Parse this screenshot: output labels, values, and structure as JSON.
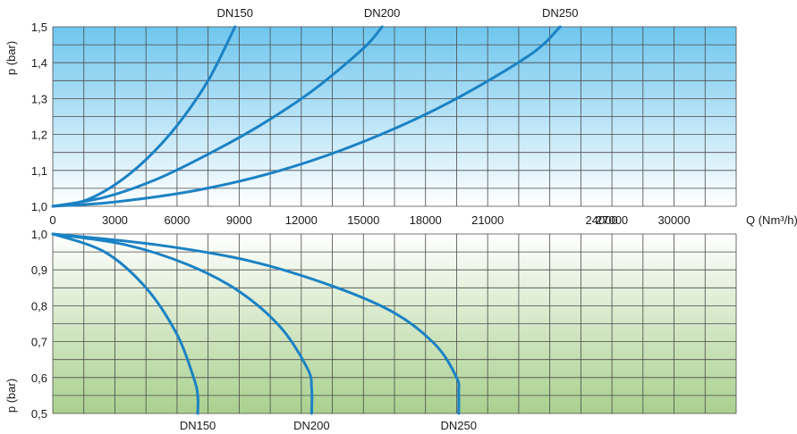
{
  "chart_data": [
    {
      "type": "line",
      "panel": "upper",
      "xlabel": "Q (Nm³/h)",
      "ylabel": "p (bar)",
      "xlim": [
        0,
        33000
      ],
      "ylim": [
        1.0,
        1.5
      ],
      "x_ticks": [
        "0",
        "3000",
        "6000",
        "9000",
        "12000",
        "15000",
        "18000",
        "21000",
        "27000",
        "30000"
      ],
      "x_tick_values": [
        0,
        3000,
        6000,
        9000,
        12000,
        15000,
        18000,
        21000,
        27000,
        30000
      ],
      "x_tick_24k": "24000",
      "y_ticks": [
        "1,0",
        "1,1",
        "1,2",
        "1,3",
        "1,4",
        "1,5"
      ],
      "y_tick_values": [
        1.0,
        1.1,
        1.2,
        1.3,
        1.4,
        1.5
      ],
      "grid": true,
      "background": "vertical gradient, light blue at top to white at bottom",
      "series": [
        {
          "name": "DN150",
          "x": [
            0,
            1500,
            3000,
            4500,
            6000,
            7500,
            8800
          ],
          "y": [
            1.0,
            1.015,
            1.06,
            1.13,
            1.225,
            1.35,
            1.5
          ]
        },
        {
          "name": "DN200",
          "x": [
            0,
            2500,
            5000,
            7500,
            10000,
            12500,
            15000,
            15900
          ],
          "y": [
            1.0,
            1.025,
            1.075,
            1.145,
            1.225,
            1.32,
            1.44,
            1.5
          ]
        },
        {
          "name": "DN250",
          "x": [
            0,
            3000,
            7000,
            11000,
            15000,
            19000,
            23000,
            24500
          ],
          "y": [
            1.0,
            1.012,
            1.045,
            1.1,
            1.18,
            1.285,
            1.42,
            1.5
          ]
        }
      ]
    },
    {
      "type": "line",
      "panel": "lower",
      "xlabel": "Q (Nm³/h)",
      "ylabel": "p (bar)",
      "xlim": [
        0,
        33000
      ],
      "ylim": [
        0.5,
        1.0
      ],
      "y_ticks": [
        "0,5",
        "0,6",
        "0,7",
        "0,8",
        "0,9",
        "1,0"
      ],
      "y_tick_values": [
        0.5,
        0.6,
        0.7,
        0.8,
        0.9,
        1.0
      ],
      "grid": true,
      "background": "vertical gradient, white at top to light green at bottom",
      "series": [
        {
          "name": "DN150",
          "x": [
            0,
            2500,
            4500,
            6000,
            6800,
            7000,
            7000
          ],
          "y": [
            1.0,
            0.95,
            0.85,
            0.72,
            0.6,
            0.55,
            0.5
          ]
        },
        {
          "name": "DN200",
          "x": [
            0,
            3500,
            6500,
            9000,
            11000,
            12300,
            12500,
            12500
          ],
          "y": [
            1.0,
            0.97,
            0.915,
            0.84,
            0.74,
            0.625,
            0.57,
            0.5
          ]
        },
        {
          "name": "DN250",
          "x": [
            0,
            5000,
            9500,
            13500,
            16500,
            18500,
            19500,
            19600,
            19600
          ],
          "y": [
            1.0,
            0.97,
            0.925,
            0.855,
            0.78,
            0.69,
            0.6,
            0.56,
            0.5
          ]
        }
      ]
    }
  ],
  "colors": {
    "curve": "#1b82c4",
    "grid": "#4a4a4a",
    "upper_top": "#6fc6ee",
    "upper_bottom": "#ffffff",
    "lower_top": "#ffffff",
    "lower_bottom": "#a9d08e"
  }
}
